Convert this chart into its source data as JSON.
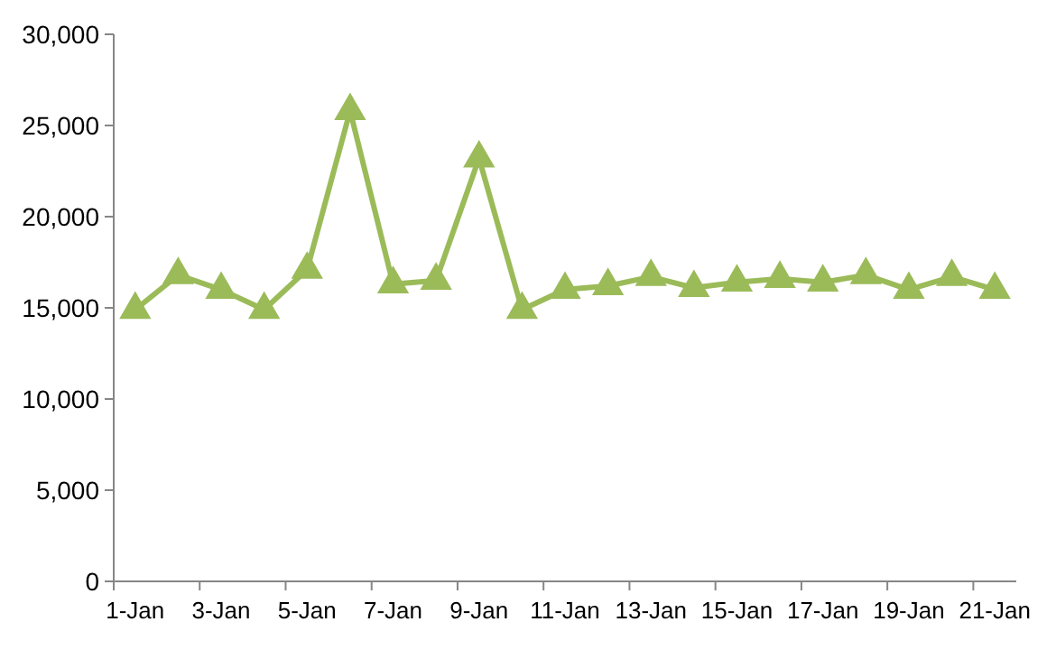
{
  "chart_data": {
    "type": "line",
    "categories": [
      "1-Jan",
      null,
      "3-Jan",
      null,
      "5-Jan",
      null,
      "7-Jan",
      null,
      "9-Jan",
      null,
      "11-Jan",
      null,
      "13-Jan",
      null,
      "15-Jan",
      null,
      "17-Jan",
      null,
      "19-Jan",
      null,
      "21-Jan"
    ],
    "series": [
      {
        "color": "#9bbb59",
        "values": [
          14900,
          16800,
          16000,
          14900,
          17100,
          25800,
          16300,
          16500,
          23200,
          14900,
          16000,
          16200,
          16700,
          16100,
          16400,
          16600,
          16400,
          16800,
          16000,
          16700,
          16000
        ]
      }
    ],
    "ylim": [
      0,
      30000
    ],
    "yticks": [
      {
        "value": 0,
        "label": "0"
      },
      {
        "value": 5000,
        "label": "5,000"
      },
      {
        "value": 10000,
        "label": "10,000"
      },
      {
        "value": 15000,
        "label": "15,000"
      },
      {
        "value": 20000,
        "label": "20,000"
      },
      {
        "value": 25000,
        "label": "25,000"
      },
      {
        "value": 30000,
        "label": "30,000"
      }
    ],
    "marker": "triangle",
    "line_style": "solid",
    "grid": false
  }
}
